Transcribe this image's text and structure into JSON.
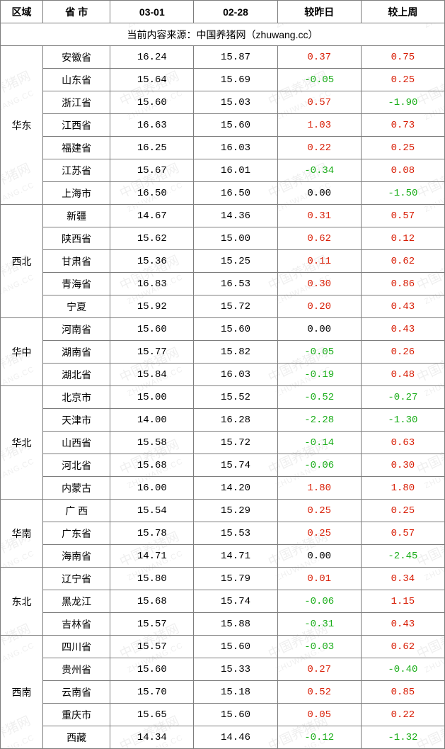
{
  "columns": [
    "区域",
    "省 市",
    "03-01",
    "02-28",
    "较昨日",
    "较上周"
  ],
  "source_text": "当前内容来源：中国养猪网（zhuwang.cc）",
  "watermark_text": "中国养猪网",
  "watermark_sub": "ZHUWANG.CC",
  "colors": {
    "positive": "#d81e06",
    "negative": "#1aad19",
    "zero": "#000000",
    "border": "#7d7d7d"
  },
  "regions": [
    {
      "name": "华东",
      "rows": [
        {
          "province": "安徽省",
          "v1": "16.24",
          "v2": "15.87",
          "d1": "0.37",
          "d2": "0.75"
        },
        {
          "province": "山东省",
          "v1": "15.64",
          "v2": "15.69",
          "d1": "-0.05",
          "d2": "0.25"
        },
        {
          "province": "浙江省",
          "v1": "15.60",
          "v2": "15.03",
          "d1": "0.57",
          "d2": "-1.90"
        },
        {
          "province": "江西省",
          "v1": "16.63",
          "v2": "15.60",
          "d1": "1.03",
          "d2": "0.73"
        },
        {
          "province": "福建省",
          "v1": "16.25",
          "v2": "16.03",
          "d1": "0.22",
          "d2": "0.25"
        },
        {
          "province": "江苏省",
          "v1": "15.67",
          "v2": "16.01",
          "d1": "-0.34",
          "d2": "0.08"
        },
        {
          "province": "上海市",
          "v1": "16.50",
          "v2": "16.50",
          "d1": "0.00",
          "d2": "-1.50"
        }
      ]
    },
    {
      "name": "西北",
      "rows": [
        {
          "province": "新疆",
          "v1": "14.67",
          "v2": "14.36",
          "d1": "0.31",
          "d2": "0.57"
        },
        {
          "province": "陕西省",
          "v1": "15.62",
          "v2": "15.00",
          "d1": "0.62",
          "d2": "0.12"
        },
        {
          "province": "甘肃省",
          "v1": "15.36",
          "v2": "15.25",
          "d1": "0.11",
          "d2": "0.62"
        },
        {
          "province": "青海省",
          "v1": "16.83",
          "v2": "16.53",
          "d1": "0.30",
          "d2": "0.86"
        },
        {
          "province": "宁夏",
          "v1": "15.92",
          "v2": "15.72",
          "d1": "0.20",
          "d2": "0.43"
        }
      ]
    },
    {
      "name": "华中",
      "rows": [
        {
          "province": "河南省",
          "v1": "15.60",
          "v2": "15.60",
          "d1": "0.00",
          "d2": "0.43"
        },
        {
          "province": "湖南省",
          "v1": "15.77",
          "v2": "15.82",
          "d1": "-0.05",
          "d2": "0.26"
        },
        {
          "province": "湖北省",
          "v1": "15.84",
          "v2": "16.03",
          "d1": "-0.19",
          "d2": "0.48"
        }
      ]
    },
    {
      "name": "华北",
      "rows": [
        {
          "province": "北京市",
          "v1": "15.00",
          "v2": "15.52",
          "d1": "-0.52",
          "d2": "-0.27"
        },
        {
          "province": "天津市",
          "v1": "14.00",
          "v2": "16.28",
          "d1": "-2.28",
          "d2": "-1.30"
        },
        {
          "province": "山西省",
          "v1": "15.58",
          "v2": "15.72",
          "d1": "-0.14",
          "d2": "0.63"
        },
        {
          "province": "河北省",
          "v1": "15.68",
          "v2": "15.74",
          "d1": "-0.06",
          "d2": "0.30"
        },
        {
          "province": "内蒙古",
          "v1": "16.00",
          "v2": "14.20",
          "d1": "1.80",
          "d2": "1.80"
        }
      ]
    },
    {
      "name": "华南",
      "rows": [
        {
          "province": "广 西",
          "v1": "15.54",
          "v2": "15.29",
          "d1": "0.25",
          "d2": "0.25"
        },
        {
          "province": "广东省",
          "v1": "15.78",
          "v2": "15.53",
          "d1": "0.25",
          "d2": "0.57"
        },
        {
          "province": "海南省",
          "v1": "14.71",
          "v2": "14.71",
          "d1": "0.00",
          "d2": "-2.45"
        }
      ]
    },
    {
      "name": "东北",
      "rows": [
        {
          "province": "辽宁省",
          "v1": "15.80",
          "v2": "15.79",
          "d1": "0.01",
          "d2": "0.34"
        },
        {
          "province": "黑龙江",
          "v1": "15.68",
          "v2": "15.74",
          "d1": "-0.06",
          "d2": "1.15"
        },
        {
          "province": "吉林省",
          "v1": "15.57",
          "v2": "15.88",
          "d1": "-0.31",
          "d2": "0.43"
        }
      ]
    },
    {
      "name": "西南",
      "rows": [
        {
          "province": "四川省",
          "v1": "15.57",
          "v2": "15.60",
          "d1": "-0.03",
          "d2": "0.62"
        },
        {
          "province": "贵州省",
          "v1": "15.60",
          "v2": "15.33",
          "d1": "0.27",
          "d2": "-0.40"
        },
        {
          "province": "云南省",
          "v1": "15.70",
          "v2": "15.18",
          "d1": "0.52",
          "d2": "0.85"
        },
        {
          "province": "重庆市",
          "v1": "15.65",
          "v2": "15.60",
          "d1": "0.05",
          "d2": "0.22"
        },
        {
          "province": "西藏",
          "v1": "14.34",
          "v2": "14.46",
          "d1": "-0.12",
          "d2": "-1.32"
        }
      ]
    }
  ]
}
